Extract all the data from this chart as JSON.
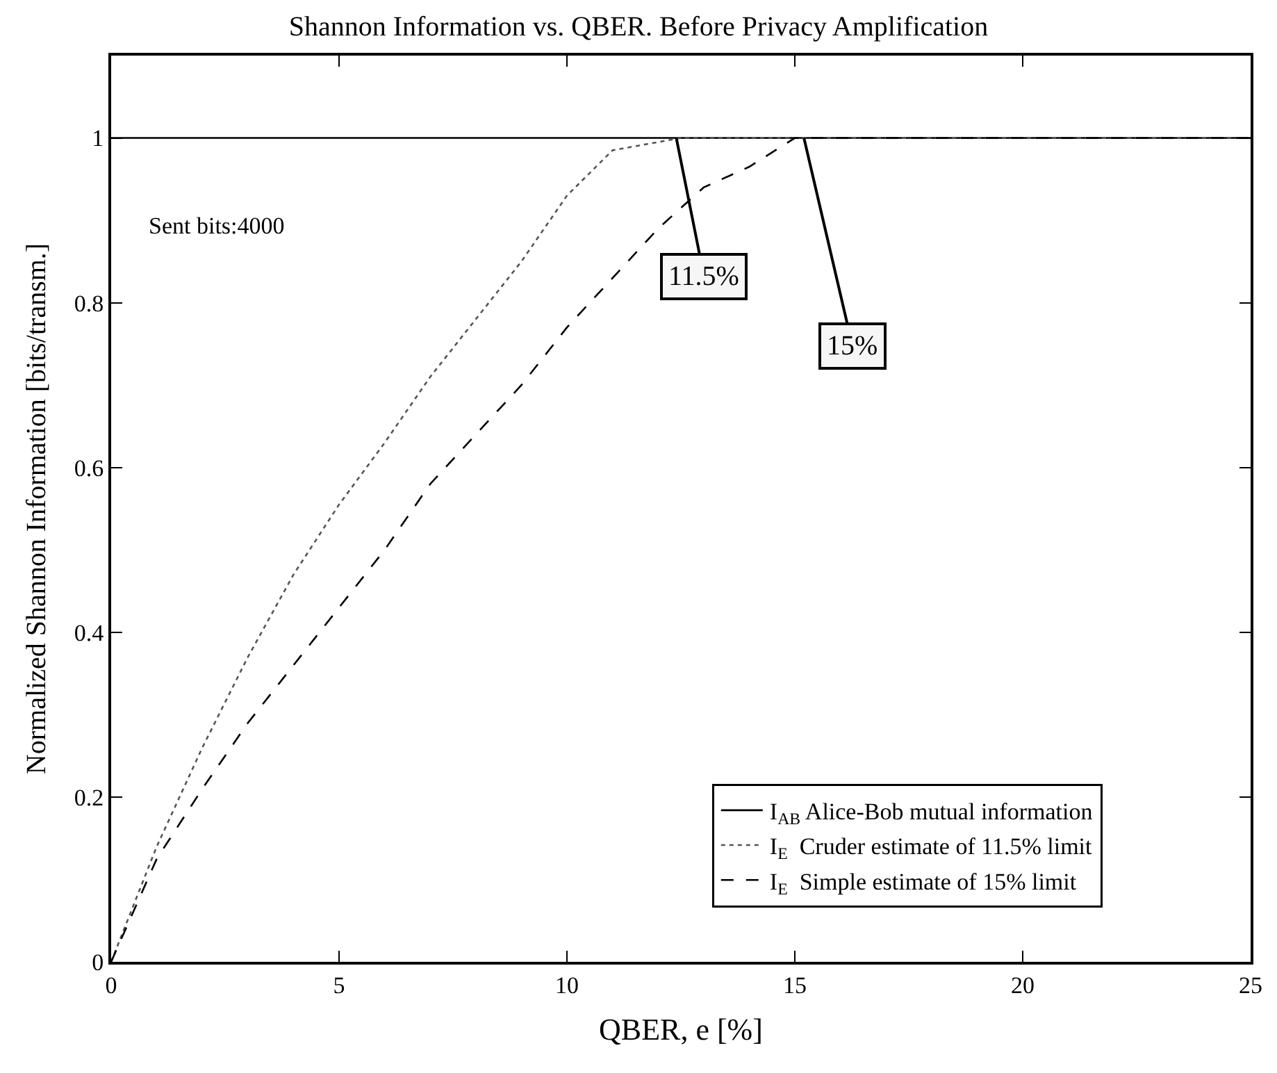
{
  "chart_data": {
    "type": "line",
    "title": "Shannon Information vs. QBER. Before Privacy Amplification",
    "xlabel": "QBER, e [%]",
    "ylabel": "Normalized Shannon Information [bits/transm.]",
    "xlim": [
      0,
      25
    ],
    "ylim": [
      0,
      1.1
    ],
    "xticks": [
      0,
      5,
      10,
      15,
      20,
      25
    ],
    "yticks": [
      0,
      0.2,
      0.4,
      0.6,
      0.8,
      1
    ],
    "legend": "bottom right",
    "marker": "none",
    "series": [
      {
        "name": "I$_{AB}$ Alice-Bob mutual information",
        "color": "#000000",
        "line_style": "solid",
        "x": [
          0,
          25
        ],
        "values": [
          1,
          1
        ]
      },
      {
        "name": "I$_{E}$  Cruder estimate of 11.5% limit",
        "color": "#555555",
        "line_style": "dotted",
        "x": [
          0,
          1,
          2,
          3,
          4,
          5,
          6,
          7,
          8,
          9,
          10,
          11,
          12,
          12.5,
          15,
          20,
          25
        ],
        "values": [
          0,
          0.14,
          0.26,
          0.37,
          0.47,
          0.555,
          0.63,
          0.71,
          0.78,
          0.85,
          0.93,
          0.985,
          0.995,
          1,
          1,
          1,
          1
        ]
      },
      {
        "name": "I$_{E}$  Simple estimate of 15% limit",
        "color": "#000000",
        "line_style": "dashed",
        "x": [
          0,
          1,
          2,
          3,
          4,
          5,
          6,
          7,
          8,
          9,
          10,
          11,
          12,
          13,
          14,
          15,
          20,
          25
        ],
        "values": [
          0,
          0.125,
          0.21,
          0.29,
          0.36,
          0.43,
          0.5,
          0.58,
          0.64,
          0.7,
          0.77,
          0.83,
          0.89,
          0.94,
          0.965,
          1,
          1,
          1
        ]
      }
    ],
    "annotations": [
      "Sent bits:4000",
      {
        "text": "11.5%",
        "x": 12.4,
        "y": 1
      },
      {
        "text": "15%",
        "x": 15.2,
        "y": 1
      }
    ]
  }
}
